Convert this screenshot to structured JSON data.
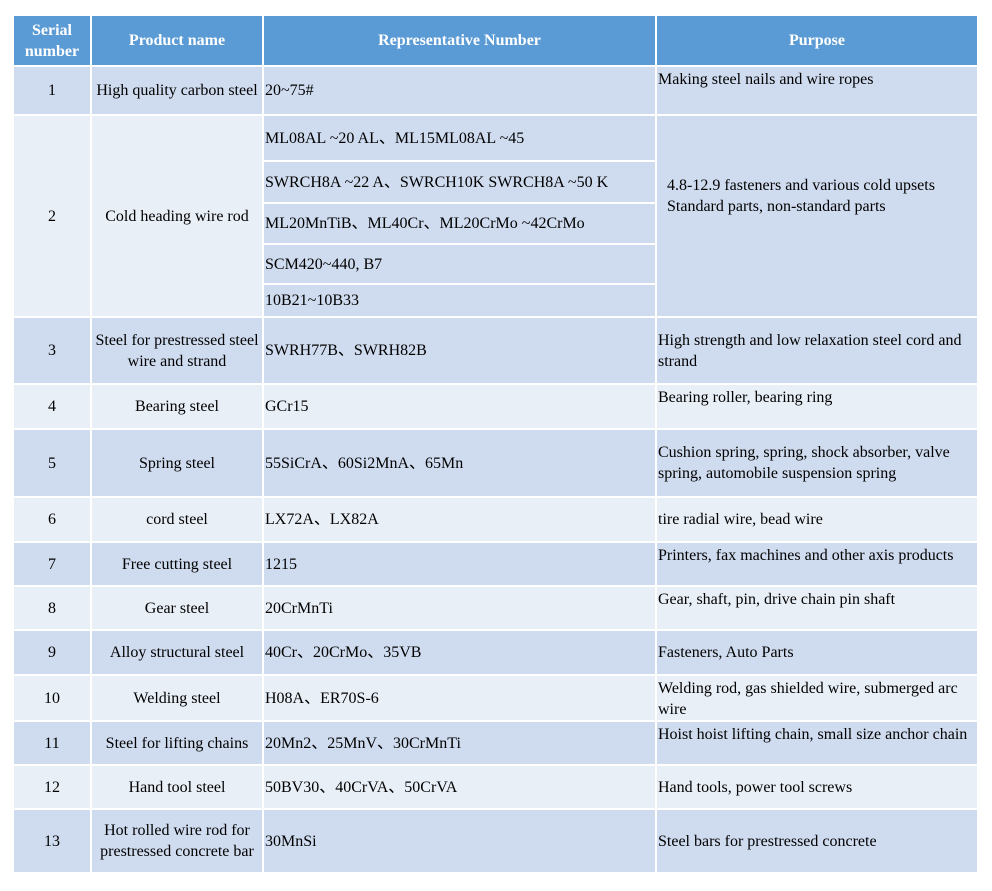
{
  "headers": [
    "Serial number",
    "Product name",
    "Representative Number",
    "Purpose"
  ],
  "colors": {
    "header": "#5b9bd5",
    "row_dark": "#cfdbee",
    "row_light": "#e9eff7"
  },
  "rows": [
    {
      "serial": "1",
      "product": "High quality carbon steel",
      "numbers": [
        "20~75#"
      ],
      "purpose": "Making steel nails and wire ropes"
    },
    {
      "serial": "2",
      "product": "Cold heading wire rod",
      "numbers": [
        "ML08AL ~20 AL、ML15ML08AL ~45",
        "SWRCH8A ~22 A、SWRCH10K SWRCH8A ~50 K",
        "ML20MnTiB、ML40Cr、ML20CrMo ~42CrMo",
        "SCM420~440, B7",
        "10B21~10B33"
      ],
      "purpose": "4.8-12.9 fasteners and various cold upsets Standard parts, non-standard parts"
    },
    {
      "serial": "3",
      "product": "Steel for prestressed steel wire and strand",
      "numbers": [
        "SWRH77B、SWRH82B"
      ],
      "purpose": "High strength and low relaxation steel cord and strand"
    },
    {
      "serial": "4",
      "product": "Bearing steel",
      "numbers": [
        "GCr15"
      ],
      "purpose": "Bearing roller, bearing ring"
    },
    {
      "serial": "5",
      "product": "Spring steel",
      "numbers": [
        "55SiCrA、60Si2MnA、65Mn"
      ],
      "purpose": "Cushion spring, spring, shock absorber, valve spring, automobile suspension spring"
    },
    {
      "serial": "6",
      "product": "cord steel",
      "numbers": [
        "LX72A、LX82A"
      ],
      "purpose": "tire radial wire, bead wire"
    },
    {
      "serial": "7",
      "product": "Free cutting steel",
      "numbers": [
        "1215"
      ],
      "purpose": "Printers, fax machines and other axis products"
    },
    {
      "serial": "8",
      "product": "Gear steel",
      "numbers": [
        "20CrMnTi"
      ],
      "purpose": "Gear, shaft, pin, drive chain pin shaft"
    },
    {
      "serial": "9",
      "product": "Alloy structural steel",
      "numbers": [
        "40Cr、20CrMo、35VB"
      ],
      "purpose": "Fasteners, Auto Parts"
    },
    {
      "serial": "10",
      "product": "Welding steel",
      "numbers": [
        "H08A、ER70S-6"
      ],
      "purpose": "Welding rod, gas shielded wire, submerged arc wire"
    },
    {
      "serial": "11",
      "product": "Steel for lifting chains",
      "numbers": [
        "20Mn2、25MnV、30CrMnTi"
      ],
      "purpose": "Hoist hoist lifting chain, small size anchor chain"
    },
    {
      "serial": "12",
      "product": "Hand tool steel",
      "numbers": [
        "50BV30、40CrVA、50CrVA"
      ],
      "purpose": "Hand tools, power tool screws"
    },
    {
      "serial": "13",
      "product": "Hot rolled wire rod for prestressed concrete bar",
      "numbers": [
        "30MnSi"
      ],
      "purpose": "Steel bars for prestressed concrete"
    }
  ]
}
